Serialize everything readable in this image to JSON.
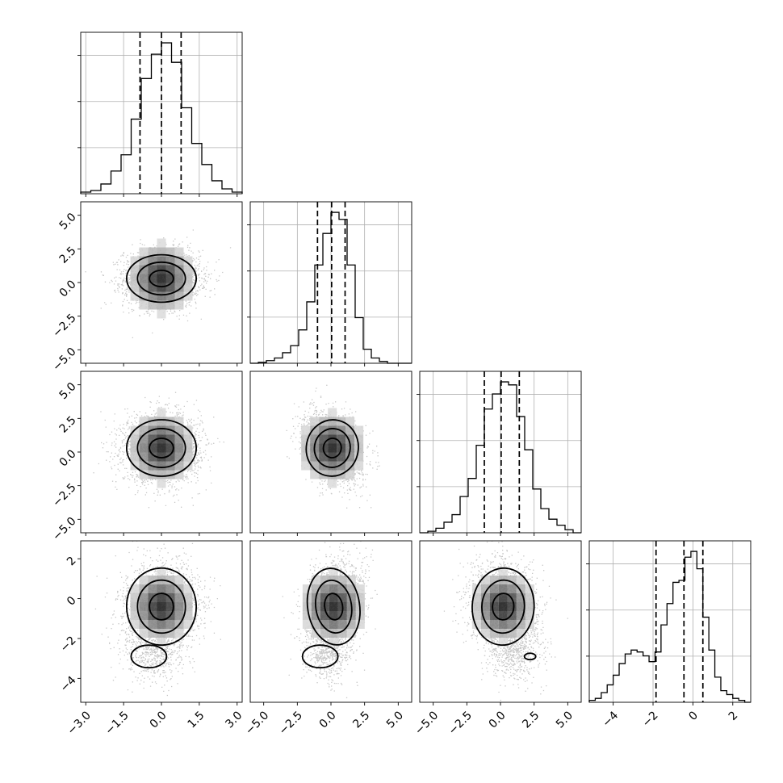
{
  "chart_data": {
    "type": "corner",
    "ndim": 4,
    "grid": true,
    "quantile_lines": "dashed",
    "colors": {
      "points": "#9a9a9a",
      "density": "#000000",
      "frame": "#000000",
      "grid": "#b0b0b0"
    },
    "variables": [
      {
        "range": [
          -3.2,
          3.2
        ],
        "ticks": [
          -3.0,
          -1.5,
          0.0,
          1.5,
          3.0
        ],
        "tick_labels": [
          "−3.0",
          "−1.5",
          "0.0",
          "1.5",
          "3.0"
        ],
        "quantiles": [
          -0.85,
          0.0,
          0.78
        ],
        "hist_edges": [
          -3.2,
          -2.8,
          -2.4,
          -2.0,
          -1.6,
          -1.2,
          -0.8,
          -0.4,
          0.0,
          0.4,
          0.8,
          1.2,
          1.6,
          2.0,
          2.4,
          2.8,
          3.2
        ],
        "hist_values": [
          0.01,
          0.02,
          0.06,
          0.14,
          0.24,
          0.46,
          0.71,
          0.86,
          0.93,
          0.81,
          0.53,
          0.31,
          0.18,
          0.08,
          0.03,
          0.01
        ]
      },
      {
        "range": [
          -6.0,
          6.0
        ],
        "ticks": [
          -5.0,
          -2.5,
          0.0,
          2.5,
          5.0
        ],
        "tick_labels": [
          "−5.0",
          "−2.5",
          "0.0",
          "2.5",
          "5.0"
        ],
        "quantiles": [
          -1.0,
          0.05,
          1.05
        ],
        "hist_edges": [
          -6.0,
          -5.4,
          -4.8,
          -4.2,
          -3.6,
          -3.0,
          -2.4,
          -1.8,
          -1.2,
          -0.6,
          0.0,
          0.6,
          1.2,
          1.8,
          2.4,
          3.0,
          3.6,
          4.2,
          4.8,
          5.4,
          6.0
        ],
        "hist_values": [
          0.0,
          0.005,
          0.015,
          0.03,
          0.06,
          0.1,
          0.19,
          0.35,
          0.56,
          0.74,
          0.86,
          0.82,
          0.56,
          0.26,
          0.08,
          0.03,
          0.01,
          0.0,
          0.0,
          0.0
        ]
      },
      {
        "range": [
          -6.0,
          6.0
        ],
        "ticks": [
          -5.0,
          -2.5,
          0.0,
          2.5,
          5.0
        ],
        "tick_labels": [
          "−5.0",
          "−2.5",
          "0.0",
          "2.5",
          "5.0"
        ],
        "quantiles": [
          -1.2,
          0.05,
          1.4
        ],
        "hist_edges": [
          -6.0,
          -5.4,
          -4.8,
          -4.2,
          -3.6,
          -3.0,
          -2.4,
          -1.8,
          -1.2,
          -0.6,
          0.0,
          0.6,
          1.2,
          1.8,
          2.4,
          3.0,
          3.6,
          4.2,
          4.8,
          5.4,
          6.0
        ],
        "hist_values": [
          0.0,
          0.01,
          0.03,
          0.07,
          0.12,
          0.24,
          0.36,
          0.58,
          0.82,
          0.92,
          1.0,
          0.98,
          0.77,
          0.55,
          0.29,
          0.16,
          0.09,
          0.05,
          0.02,
          0.0
        ]
      },
      {
        "range": [
          -5.2,
          2.9
        ],
        "ticks": [
          -4,
          -2,
          0,
          2
        ],
        "tick_labels": [
          "−4",
          "−2",
          "0",
          "2"
        ],
        "quantiles": [
          -1.85,
          -0.45,
          0.5
        ],
        "hist_edges": [
          -5.2,
          -4.9,
          -4.6,
          -4.3,
          -4.0,
          -3.7,
          -3.4,
          -3.1,
          -2.8,
          -2.5,
          -2.2,
          -1.9,
          -1.6,
          -1.3,
          -1.0,
          -0.7,
          -0.4,
          -0.1,
          0.2,
          0.5,
          0.8,
          1.1,
          1.4,
          1.7,
          2.0,
          2.3,
          2.6,
          2.9
        ],
        "hist_values": [
          0.01,
          0.02,
          0.05,
          0.09,
          0.14,
          0.2,
          0.25,
          0.27,
          0.26,
          0.24,
          0.21,
          0.26,
          0.4,
          0.51,
          0.62,
          0.63,
          0.75,
          0.78,
          0.69,
          0.44,
          0.27,
          0.13,
          0.06,
          0.04,
          0.02,
          0.01,
          0.0
        ]
      }
    ],
    "pairs": [
      {
        "x": 0,
        "y": 1,
        "n_points": 5000,
        "mean": [
          0.0,
          0.3
        ],
        "std": [
          0.75,
          1.05
        ],
        "corr": 0.0
      },
      {
        "x": 0,
        "y": 2,
        "n_points": 5000,
        "mean": [
          0.0,
          0.3
        ],
        "std": [
          0.75,
          1.25
        ],
        "corr": 0.0
      },
      {
        "x": 1,
        "y": 2,
        "n_points": 5000,
        "mean": [
          0.1,
          0.3
        ],
        "std": [
          1.05,
          1.25
        ],
        "corr": -0.3
      },
      {
        "x": 0,
        "y": 3,
        "n_points": 5000,
        "mean": [
          0.0,
          -0.4
        ],
        "std": [
          0.75,
          1.15
        ],
        "corr": 0.05
      },
      {
        "x": 1,
        "y": 3,
        "n_points": 5000,
        "mean": [
          0.2,
          -0.4
        ],
        "std": [
          1.05,
          1.15
        ],
        "corr": 0.25
      },
      {
        "x": 2,
        "y": 3,
        "n_points": 5000,
        "mean": [
          0.2,
          -0.4
        ],
        "std": [
          1.25,
          1.15
        ],
        "corr": -0.1
      }
    ]
  }
}
